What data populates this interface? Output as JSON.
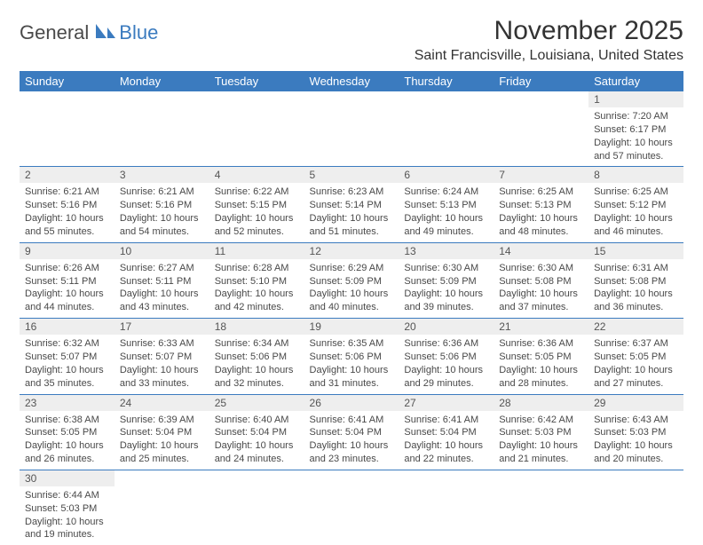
{
  "logo": {
    "text_dark": "General",
    "text_blue": "Blue"
  },
  "title": "November 2025",
  "location": "Saint Francisville, Louisiana, United States",
  "colors": {
    "header_bg": "#3b7bbf",
    "header_fg": "#ffffff",
    "daynum_bg": "#eeeeee",
    "row_border": "#3b7bbf",
    "text": "#333333",
    "body_text": "#494949"
  },
  "weekdays": [
    "Sunday",
    "Monday",
    "Tuesday",
    "Wednesday",
    "Thursday",
    "Friday",
    "Saturday"
  ],
  "weeks": [
    [
      null,
      null,
      null,
      null,
      null,
      null,
      {
        "n": "1",
        "sr": "7:20 AM",
        "ss": "6:17 PM",
        "dl": "10 hours and 57 minutes."
      }
    ],
    [
      {
        "n": "2",
        "sr": "6:21 AM",
        "ss": "5:16 PM",
        "dl": "10 hours and 55 minutes."
      },
      {
        "n": "3",
        "sr": "6:21 AM",
        "ss": "5:16 PM",
        "dl": "10 hours and 54 minutes."
      },
      {
        "n": "4",
        "sr": "6:22 AM",
        "ss": "5:15 PM",
        "dl": "10 hours and 52 minutes."
      },
      {
        "n": "5",
        "sr": "6:23 AM",
        "ss": "5:14 PM",
        "dl": "10 hours and 51 minutes."
      },
      {
        "n": "6",
        "sr": "6:24 AM",
        "ss": "5:13 PM",
        "dl": "10 hours and 49 minutes."
      },
      {
        "n": "7",
        "sr": "6:25 AM",
        "ss": "5:13 PM",
        "dl": "10 hours and 48 minutes."
      },
      {
        "n": "8",
        "sr": "6:25 AM",
        "ss": "5:12 PM",
        "dl": "10 hours and 46 minutes."
      }
    ],
    [
      {
        "n": "9",
        "sr": "6:26 AM",
        "ss": "5:11 PM",
        "dl": "10 hours and 44 minutes."
      },
      {
        "n": "10",
        "sr": "6:27 AM",
        "ss": "5:11 PM",
        "dl": "10 hours and 43 minutes."
      },
      {
        "n": "11",
        "sr": "6:28 AM",
        "ss": "5:10 PM",
        "dl": "10 hours and 42 minutes."
      },
      {
        "n": "12",
        "sr": "6:29 AM",
        "ss": "5:09 PM",
        "dl": "10 hours and 40 minutes."
      },
      {
        "n": "13",
        "sr": "6:30 AM",
        "ss": "5:09 PM",
        "dl": "10 hours and 39 minutes."
      },
      {
        "n": "14",
        "sr": "6:30 AM",
        "ss": "5:08 PM",
        "dl": "10 hours and 37 minutes."
      },
      {
        "n": "15",
        "sr": "6:31 AM",
        "ss": "5:08 PM",
        "dl": "10 hours and 36 minutes."
      }
    ],
    [
      {
        "n": "16",
        "sr": "6:32 AM",
        "ss": "5:07 PM",
        "dl": "10 hours and 35 minutes."
      },
      {
        "n": "17",
        "sr": "6:33 AM",
        "ss": "5:07 PM",
        "dl": "10 hours and 33 minutes."
      },
      {
        "n": "18",
        "sr": "6:34 AM",
        "ss": "5:06 PM",
        "dl": "10 hours and 32 minutes."
      },
      {
        "n": "19",
        "sr": "6:35 AM",
        "ss": "5:06 PM",
        "dl": "10 hours and 31 minutes."
      },
      {
        "n": "20",
        "sr": "6:36 AM",
        "ss": "5:06 PM",
        "dl": "10 hours and 29 minutes."
      },
      {
        "n": "21",
        "sr": "6:36 AM",
        "ss": "5:05 PM",
        "dl": "10 hours and 28 minutes."
      },
      {
        "n": "22",
        "sr": "6:37 AM",
        "ss": "5:05 PM",
        "dl": "10 hours and 27 minutes."
      }
    ],
    [
      {
        "n": "23",
        "sr": "6:38 AM",
        "ss": "5:05 PM",
        "dl": "10 hours and 26 minutes."
      },
      {
        "n": "24",
        "sr": "6:39 AM",
        "ss": "5:04 PM",
        "dl": "10 hours and 25 minutes."
      },
      {
        "n": "25",
        "sr": "6:40 AM",
        "ss": "5:04 PM",
        "dl": "10 hours and 24 minutes."
      },
      {
        "n": "26",
        "sr": "6:41 AM",
        "ss": "5:04 PM",
        "dl": "10 hours and 23 minutes."
      },
      {
        "n": "27",
        "sr": "6:41 AM",
        "ss": "5:04 PM",
        "dl": "10 hours and 22 minutes."
      },
      {
        "n": "28",
        "sr": "6:42 AM",
        "ss": "5:03 PM",
        "dl": "10 hours and 21 minutes."
      },
      {
        "n": "29",
        "sr": "6:43 AM",
        "ss": "5:03 PM",
        "dl": "10 hours and 20 minutes."
      }
    ],
    [
      {
        "n": "30",
        "sr": "6:44 AM",
        "ss": "5:03 PM",
        "dl": "10 hours and 19 minutes."
      },
      null,
      null,
      null,
      null,
      null,
      null
    ]
  ],
  "labels": {
    "sunrise": "Sunrise:",
    "sunset": "Sunset:",
    "daylight": "Daylight:"
  }
}
